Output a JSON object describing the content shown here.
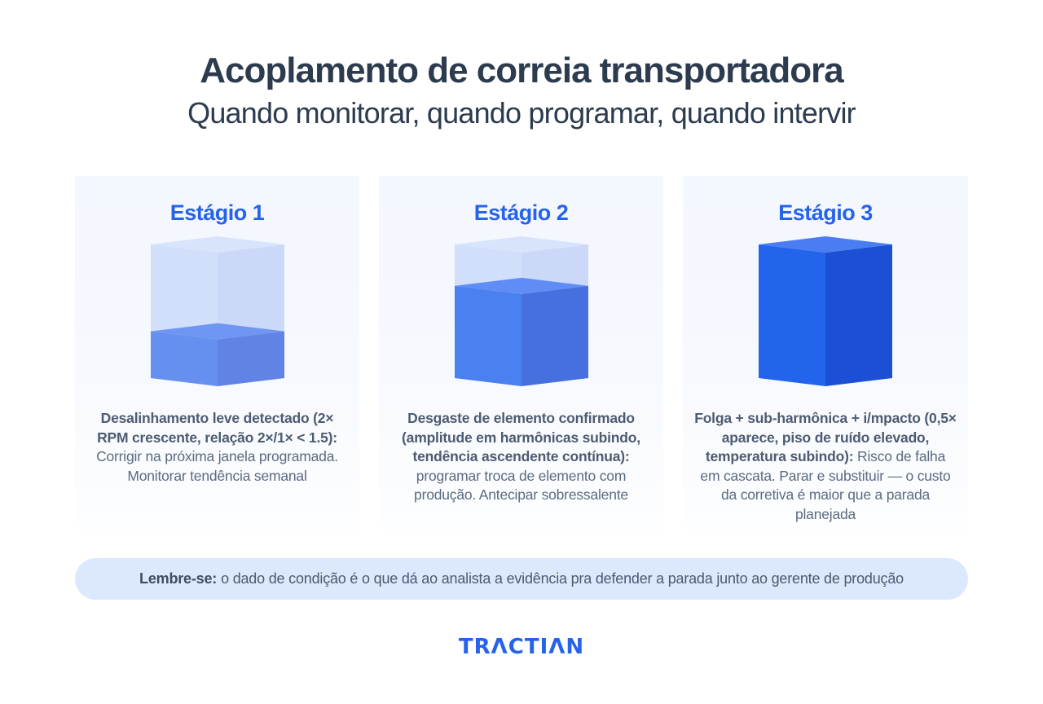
{
  "header": {
    "title": "Acoplamento de correia transportadora",
    "subtitle": "Quando monitorar, quando programar, quando intervir"
  },
  "stages": [
    {
      "title": "Estágio 1",
      "fill_level": 0.35,
      "icon": "cube-fill-low-icon",
      "colors": {
        "front": "#6690f0",
        "side": "#6183e3",
        "top": "#7096f3",
        "ghost_front": "#d1dffa",
        "ghost_side": "#cbd8f7",
        "ghost_top": "#d8e3fc"
      },
      "bold_text": "Desalinhamento leve detectado (2× RPM crescente, relação 2×/1× < 1.5):",
      "text": "Corrigir na próxima janela programada. Monitorar tendência semanal"
    },
    {
      "title": "Estágio 2",
      "fill_level": 0.69,
      "icon": "cube-fill-mid-icon",
      "colors": {
        "front": "#4a80ef",
        "side": "#4670e0",
        "top": "#5f8cf5",
        "ghost_front": "#d1dffa",
        "ghost_side": "#cbd8f7",
        "ghost_top": "#d8e3fc"
      },
      "bold_text": "Desgaste de elemento confirmado (amplitude em harmônicas subindo, tendência ascendente contínua):",
      "text": "programar troca de elemento com produção. Antecipar sobressalente"
    },
    {
      "title": "Estágio 3",
      "fill_level": 1.0,
      "icon": "cube-fill-full-icon",
      "colors": {
        "front": "#2264ec",
        "side": "#1c4fd6",
        "top": "#4a7cf2",
        "ghost_front": "#d1dffa",
        "ghost_side": "#cbd8f7",
        "ghost_top": "#d8e3fc"
      },
      "bold_text": "Folga + sub-harmônica + i/mpacto (0,5× aparece, piso de ruído elevado, temperatura subindo):",
      "text": "Risco de falha em cascata. Parar e substituir — o custo da corretiva é maior que a parada planejada"
    }
  ],
  "reminder": {
    "label": "Lembre-se:",
    "text": "o dado de condição é o que dá ao analista a evidência pra defender a parada junto ao gerente de produção"
  },
  "brand": {
    "logo_text": "TRΛCTIΛN",
    "color": "#2563eb"
  }
}
